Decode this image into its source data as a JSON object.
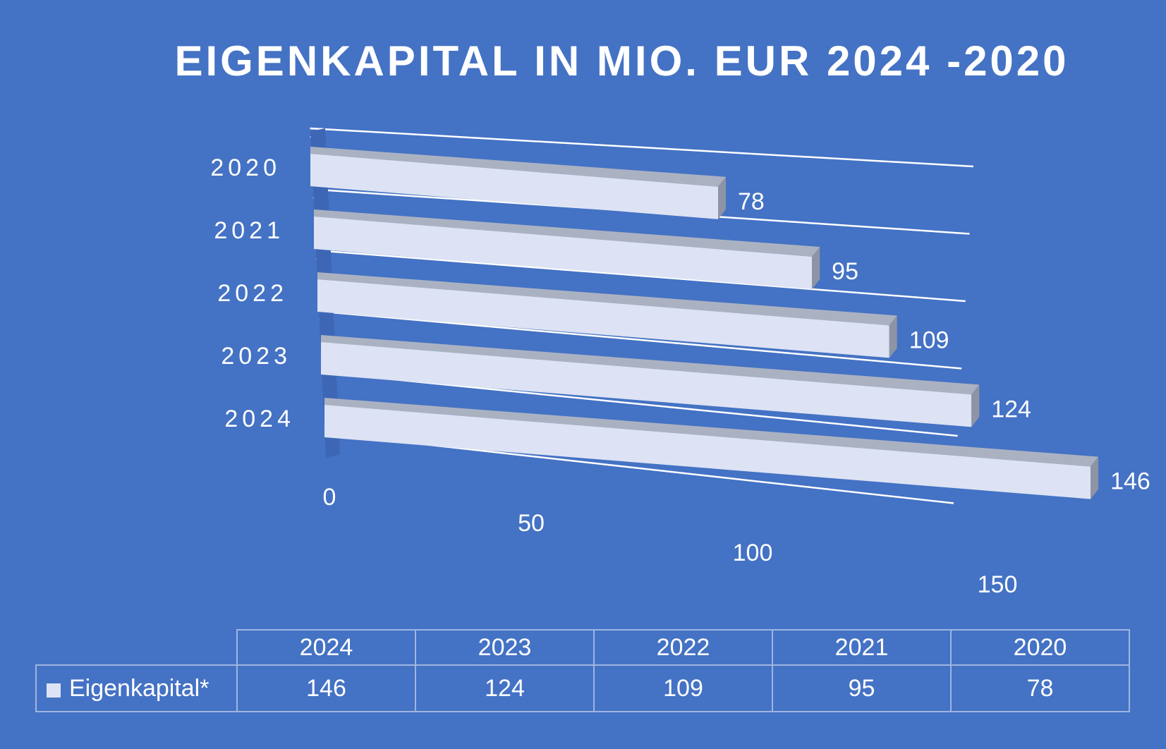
{
  "chart_data": {
    "type": "bar",
    "orientation": "horizontal",
    "style": "3d",
    "title": "EIGENKAPITAL IN MIO. EUR 2024 -2020",
    "categories": [
      "2020",
      "2021",
      "2022",
      "2023",
      "2024"
    ],
    "series": [
      {
        "name": "Eigenkapital*",
        "values": [
          78,
          95,
          109,
          124,
          146
        ]
      }
    ],
    "x_ticks": [
      "0",
      "50",
      "100",
      "150"
    ],
    "xlim": [
      0,
      150
    ],
    "grid": true,
    "colors": {
      "background": "#4472c4",
      "bar_front": "#dde3f4",
      "bar_top": "#aab2c2",
      "bar_side": "#8e94a3",
      "grid": "#ffffff",
      "text": "#ffffff"
    }
  },
  "table": {
    "columns": [
      "2024",
      "2023",
      "2022",
      "2021",
      "2020"
    ],
    "row_label": "Eigenkapital*",
    "row_values": [
      "146",
      "124",
      "109",
      "95",
      "78"
    ]
  }
}
